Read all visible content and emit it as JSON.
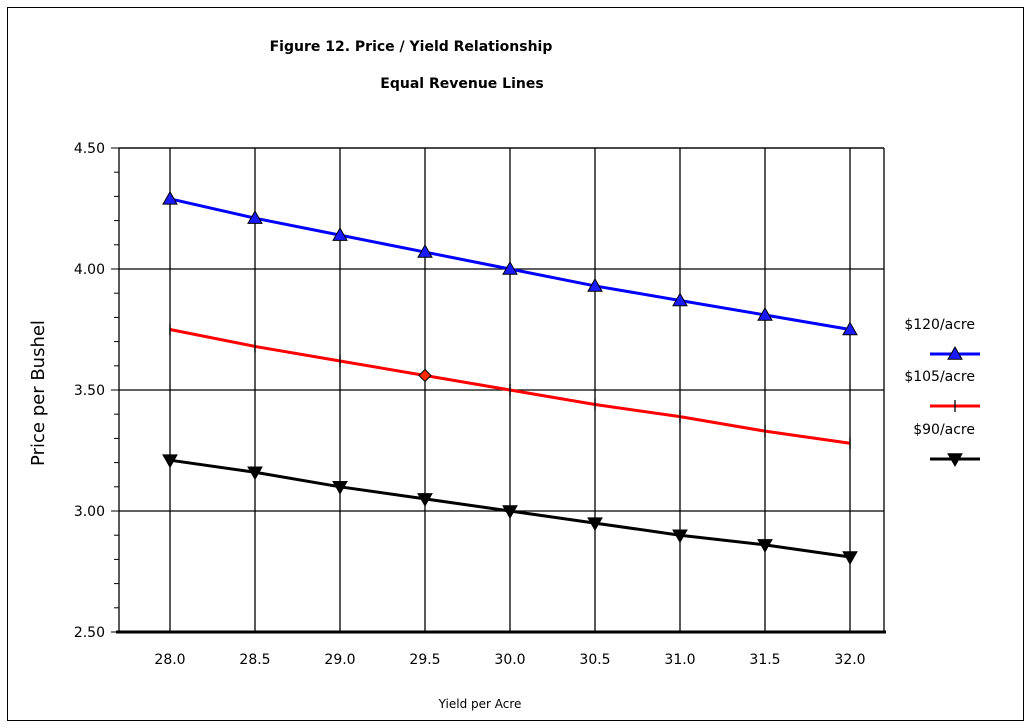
{
  "chart_data": {
    "type": "line",
    "title": "Figure 12.  Price / Yield Relationship",
    "subtitle": "Equal Revenue Lines",
    "xlabel": "Yield per Acre",
    "ylabel": "Price per Bushel",
    "x": [
      28.0,
      28.5,
      29.0,
      29.5,
      30.0,
      30.5,
      31.0,
      31.5,
      32.0
    ],
    "x_tick_labels": [
      "28.0",
      "28.5",
      "29.0",
      "29.5",
      "30.0",
      "30.5",
      "31.0",
      "31.5",
      "32.0"
    ],
    "y_ticks": [
      2.5,
      3.0,
      3.5,
      4.0,
      4.5
    ],
    "y_tick_labels": [
      "2.50",
      "3.00",
      "3.50",
      "4.00",
      "4.50"
    ],
    "xlim": [
      27.7,
      32.2
    ],
    "ylim": [
      2.5,
      4.5
    ],
    "grid": true,
    "legend_position": "right",
    "series": [
      {
        "name": "$120/acre",
        "color": "#0000ff",
        "marker": "triangle-up",
        "marker_fill": "#1a1aff",
        "values": [
          4.29,
          4.21,
          4.14,
          4.07,
          4.0,
          3.93,
          3.87,
          3.81,
          3.75
        ]
      },
      {
        "name": "$105/acre",
        "color": "#ff0000",
        "marker": "tick",
        "marker_fill": "#ff0000",
        "values": [
          3.75,
          3.68,
          3.62,
          3.56,
          3.5,
          3.44,
          3.39,
          3.33,
          3.28
        ],
        "highlight": {
          "x": 29.5,
          "y": 3.56,
          "marker": "diamond",
          "fill": "#ff2a00"
        }
      },
      {
        "name": "$90/acre",
        "color": "#000000",
        "marker": "triangle-down",
        "marker_fill": "#000000",
        "values": [
          3.21,
          3.16,
          3.1,
          3.05,
          3.0,
          2.95,
          2.9,
          2.86,
          2.81
        ]
      }
    ]
  }
}
